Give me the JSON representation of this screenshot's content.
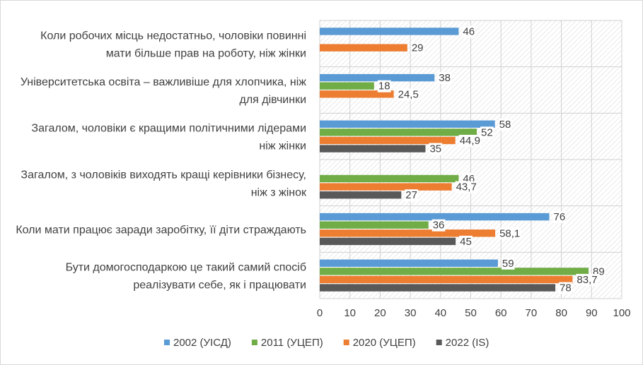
{
  "chart_data": {
    "type": "bar",
    "orientation": "horizontal",
    "title": "",
    "xlabel": "",
    "ylabel": "",
    "xlim": [
      0,
      100
    ],
    "x_ticks": [
      0,
      10,
      20,
      30,
      40,
      50,
      60,
      70,
      80,
      90,
      100
    ],
    "grid": true,
    "legend_position": "bottom",
    "categories": [
      [
        "Коли робочих місць недостатньо, чоловіки повинні",
        "мати більше прав на роботу, ніж жінки"
      ],
      [
        "Університетська освіта – важливіше для хлопчика, ніж",
        "для дівчинки"
      ],
      [
        "Загалом, чоловіки є кращими політичними лідерами",
        "ніж жінки"
      ],
      [
        "Загалом, з чоловіків виходять кращі керівники бізнесу,",
        "ніж з жінок"
      ],
      [
        "Коли мати працює заради заробітку, її діти страждають"
      ],
      [
        "Бути домогосподаркою це такий самий спосіб",
        "реалізувати себе, як і працювати"
      ]
    ],
    "series": [
      {
        "name": "2002 (УІСД)",
        "color": "#5b9bd5",
        "values": [
          46,
          38,
          58,
          null,
          76,
          59
        ],
        "labels": [
          "46",
          "38",
          "58",
          null,
          "76",
          "59"
        ]
      },
      {
        "name": "2011 (УЦЕП)",
        "color": "#70ad47",
        "values": [
          null,
          18,
          52,
          46,
          36,
          89
        ],
        "labels": [
          null,
          "18",
          "52",
          "46",
          "36",
          "89"
        ]
      },
      {
        "name": "2020 (УЦЕП)",
        "color": "#ed7d31",
        "values": [
          29,
          24.5,
          44.9,
          43.7,
          58.1,
          83.7
        ],
        "labels": [
          "29",
          "24,5",
          "44,9",
          "43,7",
          "58,1",
          "83,7"
        ]
      },
      {
        "name": "2022 (IS)",
        "color": "#595959",
        "values": [
          null,
          null,
          35,
          27,
          45,
          78
        ],
        "labels": [
          null,
          null,
          "35",
          "27",
          "45",
          "78"
        ]
      }
    ]
  }
}
